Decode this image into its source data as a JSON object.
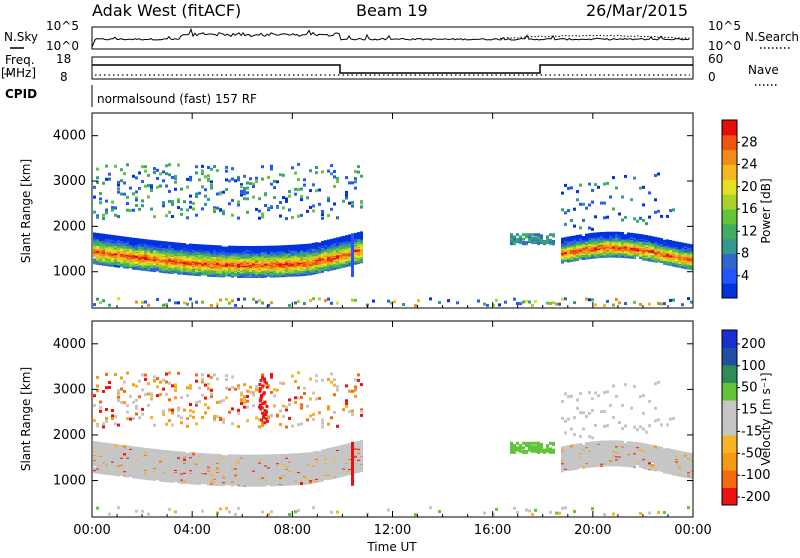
{
  "header": {
    "station": "Adak West (fitACF)",
    "beam": "Beam 19",
    "date": "26/Mar/2015"
  },
  "panels": {
    "sky": {
      "left_label": "N.Sky",
      "right_label": "N.Search",
      "left_ticks": [
        "10^5",
        "10^0"
      ],
      "right_ticks": [
        "10^5",
        "10^0"
      ]
    },
    "freq": {
      "left_label": "Freq.",
      "left_unit": "[MHz]",
      "left_ticks": [
        "18",
        "8"
      ],
      "right_label": "Nave",
      "right_ticks": [
        "60",
        "0"
      ]
    },
    "cpid": {
      "label": "CPID",
      "text": "normalsound (fast) 157 RF"
    }
  },
  "colors": {
    "power_scale": [
      "#0033dd",
      "#2255ff",
      "#3366cc",
      "#33998f",
      "#3fae5f",
      "#66c43a",
      "#a8d42a",
      "#e6e020",
      "#f6b820",
      "#f28c18",
      "#ee5510",
      "#e80c08"
    ],
    "velocity_scale": [
      "#ee1111",
      "#f46a10",
      "#f59b16",
      "#f6b426",
      "#c6c6c6",
      "#c6c6c6",
      "#63c43a",
      "#2e8c55",
      "#1f4fa3",
      "#1a2fcf"
    ]
  },
  "chart_data": [
    {
      "type": "heatmap",
      "name": "power",
      "xlabel": "",
      "ylabel": "Slant Range [km]",
      "x_ticks": [
        "00:00",
        "04:00",
        "08:00",
        "12:00",
        "16:00",
        "20:00",
        "00:00"
      ],
      "y_ticks": [
        "1000",
        "2000",
        "3000",
        "4000"
      ],
      "ylim": [
        200,
        4500
      ],
      "colorbar": {
        "label": "Power [dB]",
        "ticks": [
          "4",
          "8",
          "12",
          "16",
          "20",
          "24",
          "28"
        ],
        "range": [
          0,
          32
        ]
      }
    },
    {
      "type": "heatmap",
      "name": "velocity",
      "xlabel": "Time UT",
      "ylabel": "Slant Range [km]",
      "x_ticks": [
        "00:00",
        "04:00",
        "08:00",
        "12:00",
        "16:00",
        "20:00",
        "00:00"
      ],
      "y_ticks": [
        "1000",
        "2000",
        "3000",
        "4000"
      ],
      "ylim": [
        200,
        4500
      ],
      "colorbar": {
        "label": "Velocity [m s⁻¹]",
        "ticks": [
          "200",
          "100",
          "50",
          "15",
          "-15",
          "-50",
          "-100",
          "-200"
        ]
      }
    }
  ]
}
